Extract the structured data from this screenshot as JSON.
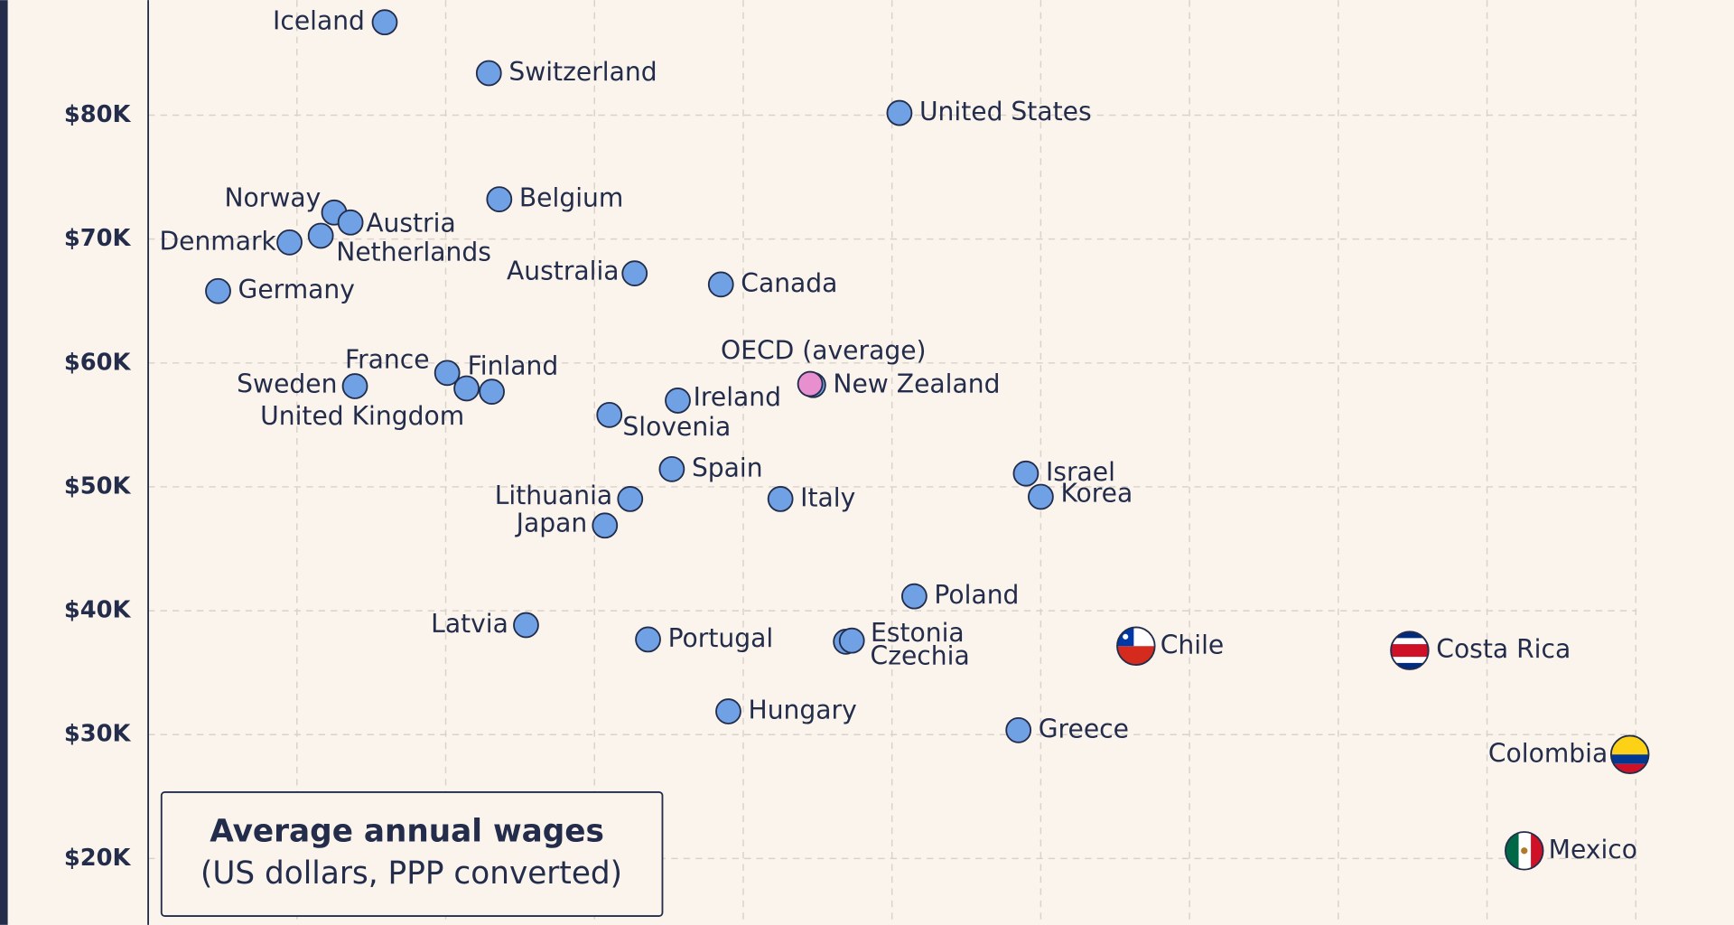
{
  "chart_data": {
    "type": "scatter",
    "annotation": {
      "title": "Average annual wages",
      "subtitle": "(US dollars, PPP converted)"
    },
    "color": "#6fa1e4",
    "xlim": [
      1300,
      2366
    ],
    "xticks": [
      1400,
      1500,
      1600,
      1700,
      1800,
      1900,
      2000,
      2100,
      2200,
      2300
    ],
    "ylim": [
      14643,
      89286
    ],
    "yticks": [
      {
        "value": 20000,
        "label": "$20K"
      },
      {
        "value": 30000,
        "label": "$30K"
      },
      {
        "value": 40000,
        "label": "$40K"
      },
      {
        "value": 50000,
        "label": "$50K"
      },
      {
        "value": 60000,
        "label": "$60K"
      },
      {
        "value": 70000,
        "label": "$70K"
      },
      {
        "value": 80000,
        "label": "$80K"
      }
    ],
    "grid": true,
    "points": [
      {
        "label": "Iceland",
        "x": 1459,
        "y": 87500
      },
      {
        "label": "Switzerland",
        "x": 1529,
        "y": 83393
      },
      {
        "label": "United States",
        "x": 1805,
        "y": 80179
      },
      {
        "label": "Belgium",
        "x": 1536,
        "y": 73214
      },
      {
        "label": "Norway",
        "x": 1425,
        "y": 72143
      },
      {
        "label": "Austria",
        "x": 1436,
        "y": 71339
      },
      {
        "label": "Netherlands",
        "x": 1416,
        "y": 70268
      },
      {
        "label": "Denmark",
        "x": 1395,
        "y": 69732
      },
      {
        "label": "Germany",
        "x": 1347,
        "y": 65804
      },
      {
        "label": "Australia",
        "x": 1627,
        "y": 67232
      },
      {
        "label": "Canada",
        "x": 1685,
        "y": 66339
      },
      {
        "label": "France",
        "x": 1501,
        "y": 59196
      },
      {
        "label": "Sweden",
        "x": 1439,
        "y": 58125
      },
      {
        "label": "United Kingdom",
        "x": 1514,
        "y": 57946
      },
      {
        "label": "Finland",
        "x": 1531,
        "y": 57679
      },
      {
        "label": "New Zealand",
        "x": 1747,
        "y": 58214
      },
      {
        "label": "OECD (average)",
        "x": 1745,
        "y": 58304,
        "color": "#e88fd0"
      },
      {
        "label": "Ireland",
        "x": 1656,
        "y": 56964
      },
      {
        "label": "Slovenia",
        "x": 1610,
        "y": 55804
      },
      {
        "label": "Spain",
        "x": 1652,
        "y": 51429
      },
      {
        "label": "Lithuania",
        "x": 1624,
        "y": 49018
      },
      {
        "label": "Japan",
        "x": 1607,
        "y": 46875
      },
      {
        "label": "Italy",
        "x": 1725,
        "y": 49018
      },
      {
        "label": "Israel",
        "x": 1890,
        "y": 51071
      },
      {
        "label": "Korea",
        "x": 1900,
        "y": 49196
      },
      {
        "label": "Poland",
        "x": 1815,
        "y": 41161
      },
      {
        "label": "Latvia",
        "x": 1554,
        "y": 38839
      },
      {
        "label": "Portugal",
        "x": 1636,
        "y": 37679
      },
      {
        "label": "Czechia",
        "x": 1769,
        "y": 37500
      },
      {
        "label": "Estonia",
        "x": 1773,
        "y": 37589
      },
      {
        "label": "Chile",
        "x": 1964,
        "y": 37143
      },
      {
        "label": "Costa Rica",
        "x": 2148,
        "y": 36786
      },
      {
        "label": "Hungary",
        "x": 1690,
        "y": 31875
      },
      {
        "label": "Greece",
        "x": 1885,
        "y": 30357
      },
      {
        "label": "Colombia",
        "x": 2296,
        "y": 28393
      },
      {
        "label": "Mexico",
        "x": 2225,
        "y": 20625
      }
    ]
  }
}
